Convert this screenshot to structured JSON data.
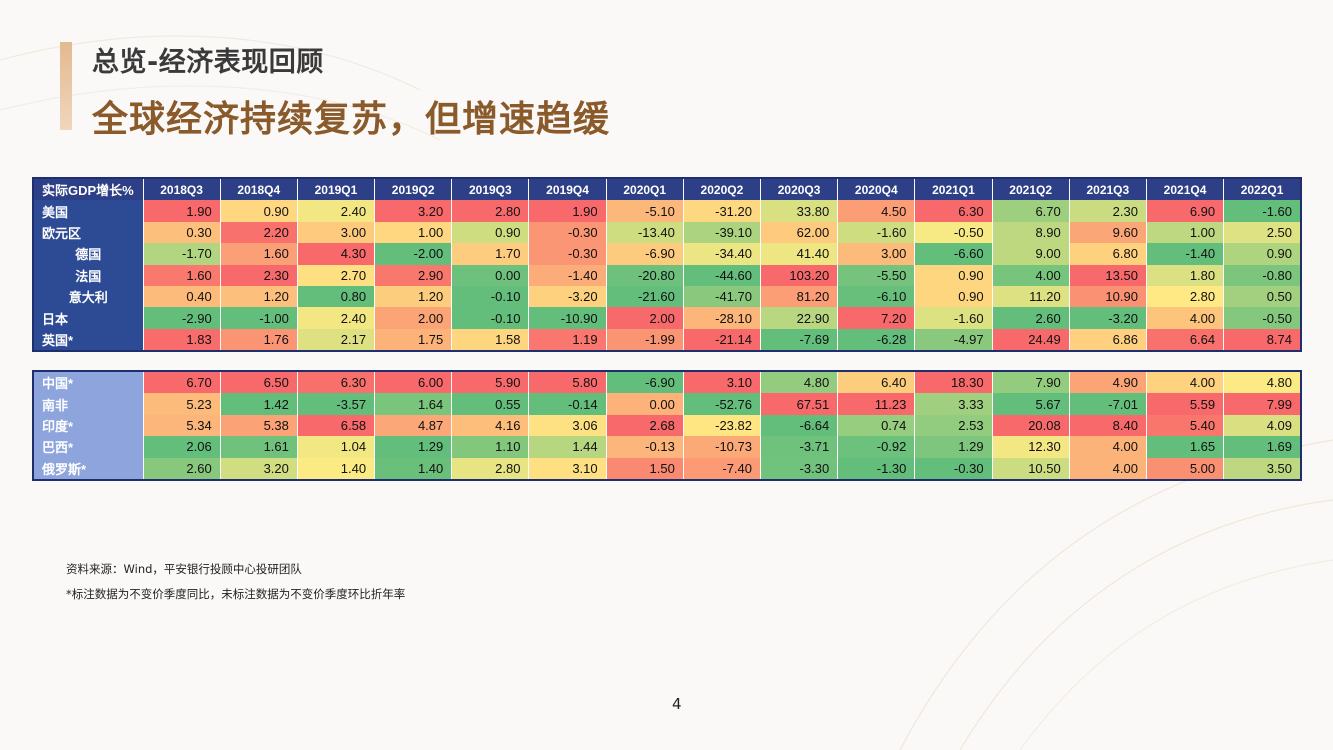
{
  "header": {
    "subtitle": "总览-经济表现回顾",
    "title": "全球经济持续复苏，但增速趋缓"
  },
  "table": {
    "corner_label": "实际GDP增长%",
    "columns": [
      "2018Q3",
      "2018Q4",
      "2019Q1",
      "2019Q2",
      "2019Q3",
      "2019Q4",
      "2020Q1",
      "2020Q2",
      "2020Q3",
      "2020Q4",
      "2021Q1",
      "2021Q2",
      "2021Q3",
      "2021Q4",
      "2022Q1"
    ],
    "developed": [
      {
        "name": "美国",
        "indent": false,
        "values": [
          "1.90",
          "0.90",
          "2.40",
          "3.20",
          "2.80",
          "1.90",
          "-5.10",
          "-31.20",
          "33.80",
          "4.50",
          "6.30",
          "6.70",
          "2.30",
          "6.90",
          "-1.60"
        ]
      },
      {
        "name": "欧元区",
        "indent": false,
        "values": [
          "0.30",
          "2.20",
          "3.00",
          "1.00",
          "0.90",
          "-0.30",
          "-13.40",
          "-39.10",
          "62.00",
          "-1.60",
          "-0.50",
          "8.90",
          "9.60",
          "1.00",
          "2.50"
        ]
      },
      {
        "name": "德国",
        "indent": true,
        "values": [
          "-1.70",
          "1.60",
          "4.30",
          "-2.00",
          "1.70",
          "-0.30",
          "-6.90",
          "-34.40",
          "41.40",
          "3.00",
          "-6.60",
          "9.00",
          "6.80",
          "-1.40",
          "0.90"
        ]
      },
      {
        "name": "法国",
        "indent": true,
        "values": [
          "1.60",
          "2.30",
          "2.70",
          "2.90",
          "0.00",
          "-1.40",
          "-20.80",
          "-44.60",
          "103.20",
          "-5.50",
          "0.90",
          "4.00",
          "13.50",
          "1.80",
          "-0.80"
        ]
      },
      {
        "name": "意大利",
        "indent": true,
        "values": [
          "0.40",
          "1.20",
          "0.80",
          "1.20",
          "-0.10",
          "-3.20",
          "-21.60",
          "-41.70",
          "81.20",
          "-6.10",
          "0.90",
          "11.20",
          "10.90",
          "2.80",
          "0.50"
        ]
      },
      {
        "name": "日本",
        "indent": false,
        "values": [
          "-2.90",
          "-1.00",
          "2.40",
          "2.00",
          "-0.10",
          "-10.90",
          "2.00",
          "-28.10",
          "22.90",
          "7.20",
          "-1.60",
          "2.60",
          "-3.20",
          "4.00",
          "-0.50"
        ]
      },
      {
        "name": "英国*",
        "indent": false,
        "values": [
          "1.83",
          "1.76",
          "2.17",
          "1.75",
          "1.58",
          "1.19",
          "-1.99",
          "-21.14",
          "-7.69",
          "-6.28",
          "-4.97",
          "24.49",
          "6.86",
          "6.64",
          "8.74"
        ]
      }
    ],
    "emerging": [
      {
        "name": "中国*",
        "indent": false,
        "values": [
          "6.70",
          "6.50",
          "6.30",
          "6.00",
          "5.90",
          "5.80",
          "-6.90",
          "3.10",
          "4.80",
          "6.40",
          "18.30",
          "7.90",
          "4.90",
          "4.00",
          "4.80"
        ]
      },
      {
        "name": "南非",
        "indent": false,
        "values": [
          "5.23",
          "1.42",
          "-3.57",
          "1.64",
          "0.55",
          "-0.14",
          "0.00",
          "-52.76",
          "67.51",
          "11.23",
          "3.33",
          "5.67",
          "-7.01",
          "5.59",
          "7.99"
        ]
      },
      {
        "name": "印度*",
        "indent": false,
        "values": [
          "5.34",
          "5.38",
          "6.58",
          "4.87",
          "4.16",
          "3.06",
          "2.68",
          "-23.82",
          "-6.64",
          "0.74",
          "2.53",
          "20.08",
          "8.40",
          "5.40",
          "4.09"
        ]
      },
      {
        "name": "巴西*",
        "indent": false,
        "values": [
          "2.06",
          "1.61",
          "1.04",
          "1.29",
          "1.10",
          "1.44",
          "-0.13",
          "-10.73",
          "-3.71",
          "-0.92",
          "1.29",
          "12.30",
          "4.00",
          "1.65",
          "1.69"
        ]
      },
      {
        "name": "俄罗斯*",
        "indent": false,
        "values": [
          "2.60",
          "3.20",
          "1.40",
          "1.40",
          "2.80",
          "3.10",
          "1.50",
          "-7.40",
          "-3.30",
          "-1.30",
          "-0.30",
          "10.50",
          "4.00",
          "5.00",
          "3.50"
        ]
      }
    ]
  },
  "notes": {
    "source": "资料来源：Wind，平安银行投顾中心投研团队",
    "footnote": "*标注数据为不变价季度同比，未标注数据为不变价季度环比折年率"
  },
  "page_number": "4",
  "colors": {
    "header_blue": "#2d3f86",
    "label_blue_dark": "#2d4a94",
    "label_blue_light": "#8da4dc",
    "title_brown": "#8a5a2b",
    "heat_low": "#63be7b",
    "heat_mid": "#ffeb84",
    "heat_high": "#f8696b"
  }
}
